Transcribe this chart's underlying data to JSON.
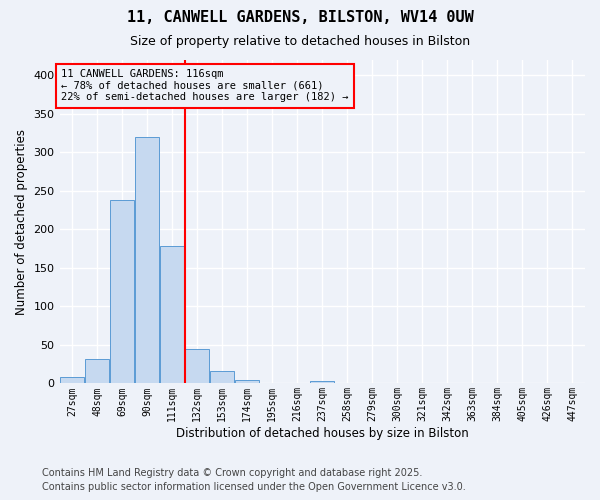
{
  "title": "11, CANWELL GARDENS, BILSTON, WV14 0UW",
  "subtitle": "Size of property relative to detached houses in Bilston",
  "xlabel": "Distribution of detached houses by size in Bilston",
  "ylabel": "Number of detached properties",
  "bar_labels": [
    "27sqm",
    "48sqm",
    "69sqm",
    "90sqm",
    "111sqm",
    "132sqm",
    "153sqm",
    "174sqm",
    "195sqm",
    "216sqm",
    "237sqm",
    "258sqm",
    "279sqm",
    "300sqm",
    "321sqm",
    "342sqm",
    "363sqm",
    "384sqm",
    "405sqm",
    "426sqm",
    "447sqm"
  ],
  "bar_values": [
    8,
    32,
    238,
    320,
    178,
    45,
    16,
    5,
    0,
    0,
    3,
    0,
    1,
    0,
    0,
    0,
    0,
    0,
    0,
    0,
    1
  ],
  "bar_color": "#c6d9f0",
  "bar_edge_color": "#5b9bd5",
  "vline_x": 4.5,
  "vline_color": "red",
  "annotation_title": "11 CANWELL GARDENS: 116sqm",
  "annotation_line2": "← 78% of detached houses are smaller (661)",
  "annotation_line3": "22% of semi-detached houses are larger (182) →",
  "annotation_box_color": "red",
  "ylim": [
    0,
    420
  ],
  "yticks": [
    0,
    50,
    100,
    150,
    200,
    250,
    300,
    350,
    400
  ],
  "footer1": "Contains HM Land Registry data © Crown copyright and database right 2025.",
  "footer2": "Contains public sector information licensed under the Open Government Licence v3.0.",
  "background_color": "#eef2f9",
  "grid_color": "#ffffff"
}
